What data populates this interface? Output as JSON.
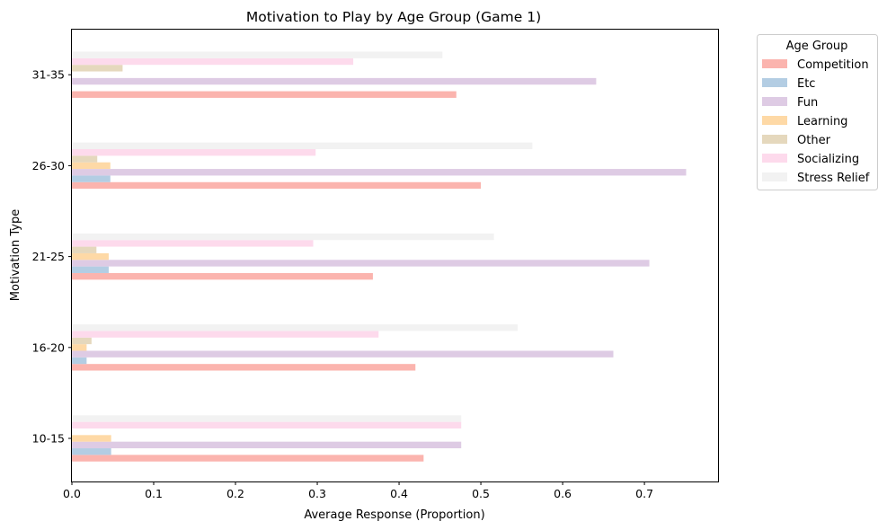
{
  "chart_data": {
    "type": "bar",
    "orientation": "horizontal",
    "title": "Motivation to Play by Age Group (Game 1)",
    "xlabel": "Average Response (Proportion)",
    "ylabel": "Motivation Type",
    "xlim": [
      0,
      0.79
    ],
    "x_ticks": [
      "0.0",
      "0.1",
      "0.2",
      "0.3",
      "0.4",
      "0.5",
      "0.6",
      "0.7"
    ],
    "categories": [
      "10-15",
      "16-20",
      "21-25",
      "26-30",
      "31-35"
    ],
    "legend_title": "Age Group",
    "legend_position": "outside-top-right",
    "grid": false,
    "series": [
      {
        "name": "Competition",
        "color": "#fbb4ae",
        "values": [
          0.43,
          0.42,
          0.368,
          0.5,
          0.47
        ]
      },
      {
        "name": "Etc",
        "color": "#b3cde3",
        "values": [
          0.048,
          0.018,
          0.045,
          0.047,
          0.0
        ]
      },
      {
        "name": "Fun",
        "color": "#decbe4",
        "values": [
          0.476,
          0.662,
          0.706,
          0.751,
          0.641
        ]
      },
      {
        "name": "Learning",
        "color": "#fed9a6",
        "values": [
          0.048,
          0.018,
          0.045,
          0.047,
          0.0
        ]
      },
      {
        "name": "Other",
        "color": "#e5d8bd",
        "values": [
          0.0,
          0.024,
          0.03,
          0.031,
          0.062
        ]
      },
      {
        "name": "Socializing",
        "color": "#fddaec",
        "values": [
          0.476,
          0.375,
          0.295,
          0.298,
          0.344
        ]
      },
      {
        "name": "Stress Relief",
        "color": "#f2f2f2",
        "values": [
          0.476,
          0.545,
          0.516,
          0.563,
          0.453
        ]
      }
    ]
  }
}
